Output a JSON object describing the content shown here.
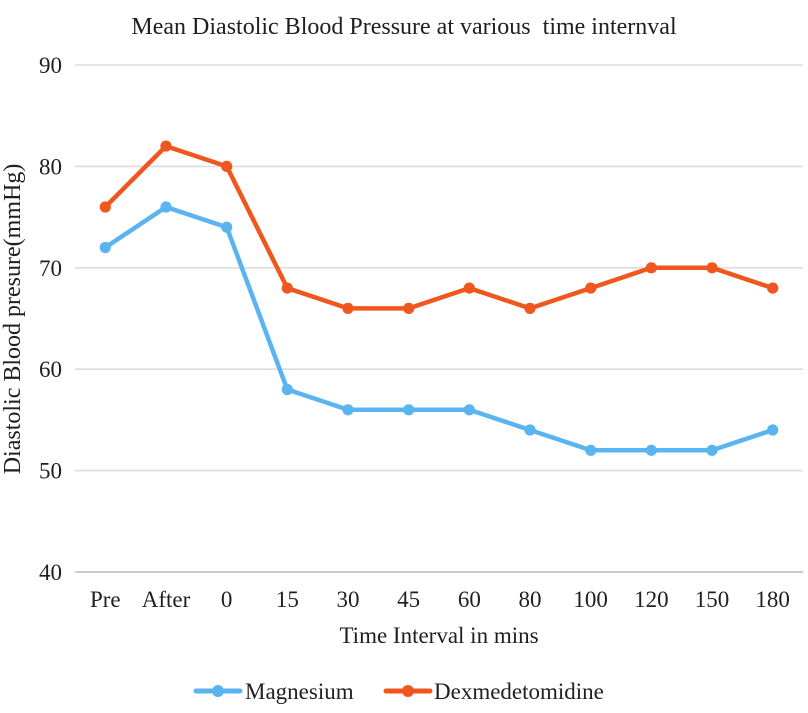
{
  "chart_data": {
    "type": "line",
    "title": "Mean Diastolic Blood Pressure at various  time internval",
    "xlabel": "Time Interval in mins",
    "ylabel": "Diastolic Blood presure(mmHg)",
    "categories": [
      "Pre",
      "After",
      "0",
      "15",
      "30",
      "45",
      "60",
      "80",
      "100",
      "120",
      "150",
      "180"
    ],
    "series": [
      {
        "name": "Magnesium",
        "color": "#5AB4F0",
        "values": [
          72,
          76,
          74,
          58,
          56,
          56,
          56,
          54,
          52,
          52,
          52,
          54
        ]
      },
      {
        "name": "Dexmedetomidine",
        "color": "#F0571E",
        "values": [
          76,
          82,
          80,
          68,
          66,
          66,
          68,
          66,
          68,
          70,
          70,
          68
        ]
      }
    ],
    "ylim": [
      40,
      90
    ],
    "ytick_step": 10,
    "yticks": [
      40,
      50,
      60,
      70,
      80,
      90
    ],
    "grid": "horizontal",
    "legend_position": "bottom",
    "colors": {
      "gridline": "#DADEDD",
      "axis_line": "#BFC4C3",
      "text": "#1F1F1F",
      "background": "#FFFFFF"
    }
  }
}
